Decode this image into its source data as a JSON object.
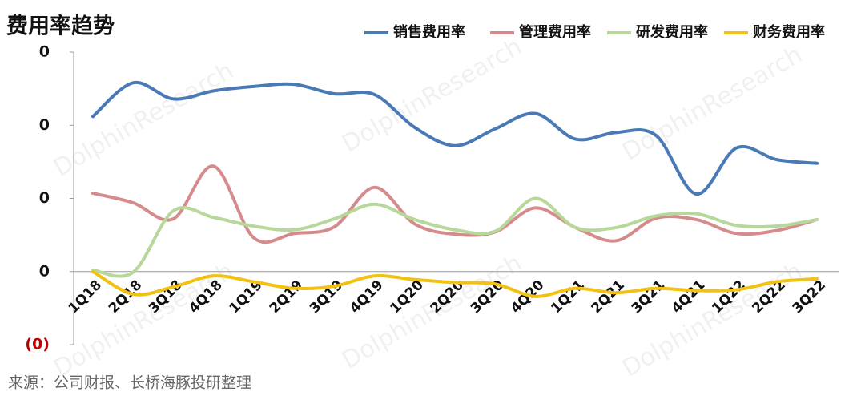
{
  "chart_data": {
    "type": "line",
    "title": "费用率趋势",
    "source": "来源：公司财报、长桥海豚投研整理",
    "watermark": "DolphinResearch",
    "categories": [
      "1Q18",
      "2Q18",
      "3Q18",
      "4Q18",
      "1Q19",
      "2Q19",
      "3Q19",
      "4Q19",
      "1Q20",
      "2Q20",
      "3Q20",
      "4Q20",
      "1Q21",
      "2Q21",
      "3Q21",
      "4Q21",
      "1Q22",
      "2Q22",
      "3Q22"
    ],
    "series": [
      {
        "name": "销售费用率",
        "color": "#4a7ab5",
        "values": [
          0.212,
          0.258,
          0.236,
          0.247,
          0.253,
          0.256,
          0.243,
          0.242,
          0.197,
          0.172,
          0.195,
          0.216,
          0.181,
          0.19,
          0.186,
          0.106,
          0.169,
          0.153,
          0.148
        ]
      },
      {
        "name": "管理费用率",
        "color": "#d58b8b",
        "values": [
          0.107,
          0.094,
          0.072,
          0.144,
          0.046,
          0.052,
          0.061,
          0.115,
          0.065,
          0.051,
          0.054,
          0.087,
          0.06,
          0.042,
          0.073,
          0.071,
          0.052,
          0.056,
          0.071
        ]
      },
      {
        "name": "研发费用率",
        "color": "#b7d89a",
        "values": [
          0.002,
          -0.001,
          0.083,
          0.074,
          0.062,
          0.057,
          0.072,
          0.092,
          0.071,
          0.057,
          0.055,
          0.1,
          0.06,
          0.06,
          0.076,
          0.079,
          0.063,
          0.062,
          0.071
        ]
      },
      {
        "name": "财务费用率",
        "color": "#f2c111",
        "values": [
          0,
          -0.031,
          -0.021,
          -0.006,
          -0.014,
          -0.023,
          -0.02,
          -0.006,
          -0.011,
          -0.015,
          -0.017,
          -0.034,
          -0.023,
          -0.029,
          -0.023,
          -0.026,
          -0.025,
          -0.014,
          -0.01
        ]
      }
    ],
    "ylim": [
      -0.1,
      0.3
    ],
    "yticks": [
      {
        "value": -0.1,
        "label": "(0)"
      },
      0,
      {
        "value": 0.1,
        "label": "0"
      },
      {
        "value": 0.2,
        "label": "0"
      },
      {
        "value": 0.3,
        "label": "0"
      }
    ]
  }
}
